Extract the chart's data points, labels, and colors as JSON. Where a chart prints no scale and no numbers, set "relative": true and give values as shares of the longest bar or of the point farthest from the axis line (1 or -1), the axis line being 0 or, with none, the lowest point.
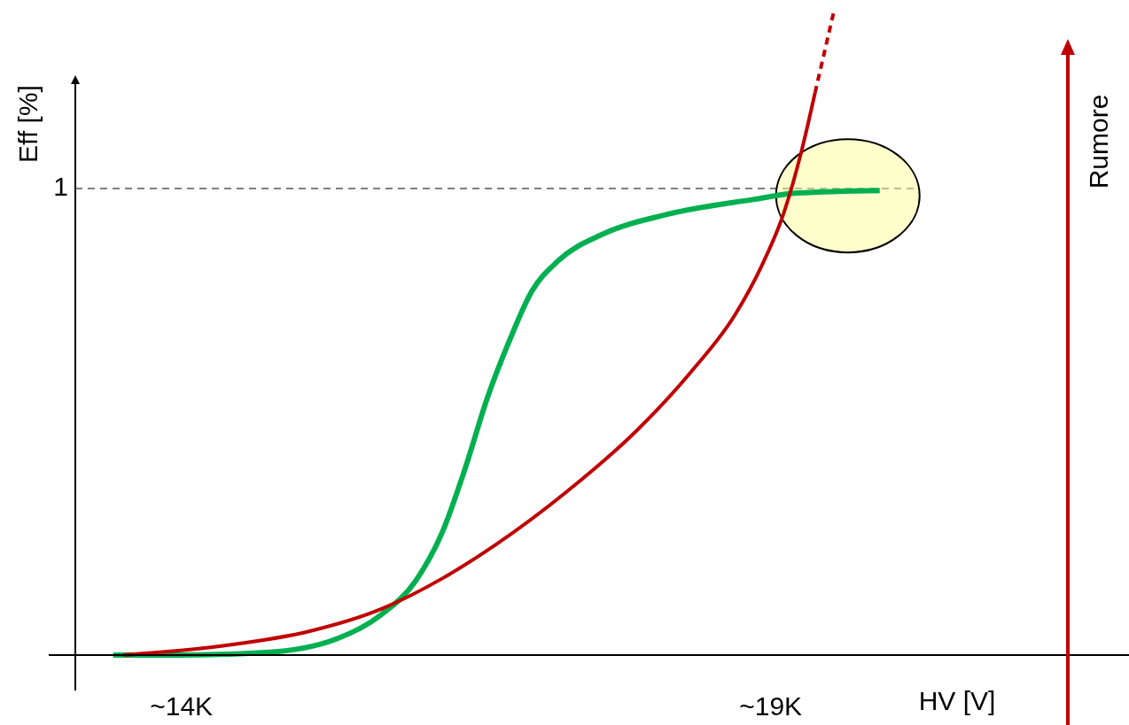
{
  "chart_data": {
    "type": "line",
    "relative": true,
    "xlabel": "HV [V]",
    "ylabel": "Eff [%]",
    "y2label": "Rumore",
    "xlim": [
      13100,
      22040
    ],
    "xticks": [
      {
        "value": 14000,
        "label": "~14K"
      },
      {
        "value": 19000,
        "label": "~19K"
      }
    ],
    "ref_lines": [
      {
        "axis": "y",
        "value": 0.722,
        "label": "1",
        "color": "#000000",
        "line_style": "dashed"
      }
    ],
    "series": [
      {
        "color": "#00b050",
        "x": [
          13421,
          13962,
          14714,
          15316,
          15692,
          15992,
          16218,
          16406,
          16594,
          16782,
          16970,
          17196,
          17571,
          18098,
          18850,
          19226,
          19925
        ],
        "values": [
          0,
          0,
          0.004,
          0.025,
          0.062,
          0.116,
          0.192,
          0.288,
          0.397,
          0.486,
          0.562,
          0.61,
          0.651,
          0.681,
          0.705,
          0.715,
          0.719
        ]
      },
      {
        "color": "#c00000",
        "x": [
          13511,
          14338,
          15090,
          15692,
          16218,
          16669,
          17271,
          17872,
          18323,
          18699,
          18925,
          19113,
          19263,
          19376
        ],
        "values": [
          0,
          0.014,
          0.037,
          0.071,
          0.119,
          0.171,
          0.253,
          0.349,
          0.438,
          0.527,
          0.603,
          0.685,
          0.781,
          0.87
        ]
      },
      {
        "color": "#c00000",
        "line_style": "dashed",
        "x": [
          19376,
          19541
        ],
        "values": [
          0.87,
          1
        ]
      }
    ]
  }
}
